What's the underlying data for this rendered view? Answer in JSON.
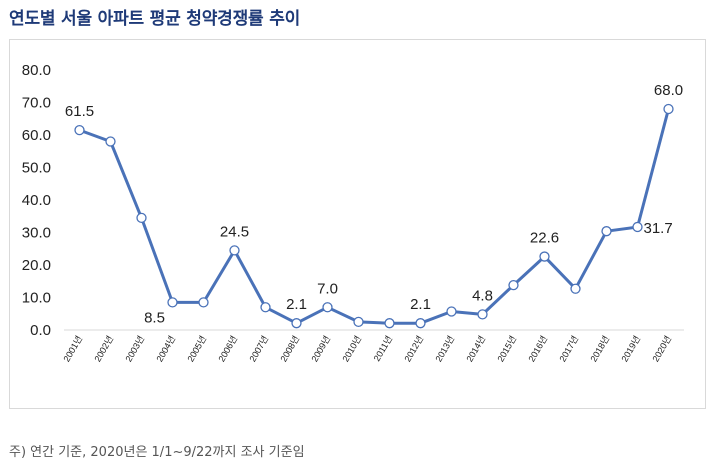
{
  "title": "연도별 서울 아파트 평균 청약경쟁률 추이",
  "note": "주) 연간 기준, 2020년은 1/1~9/22까지 조사 기준임",
  "colors": {
    "line": "#4a72b8",
    "title": "#1e3a78",
    "axis": "#d9d9d9"
  },
  "chart_data": {
    "type": "line",
    "title": "연도별 서울 아파트 평균 청약경쟁률 추이",
    "xlabel": "",
    "ylabel": "",
    "ylim": [
      0,
      80
    ],
    "yticks": [
      "0.0",
      "10.0",
      "20.0",
      "30.0",
      "40.0",
      "50.0",
      "60.0",
      "70.0",
      "80.0"
    ],
    "grid": false,
    "categories": [
      "2001년",
      "2002년",
      "2003년",
      "2004년",
      "2005년",
      "2006년",
      "2007년",
      "2008년",
      "2009년",
      "2010년",
      "2011년",
      "2012년",
      "2013년",
      "2014년",
      "2015년",
      "2016년",
      "2017년",
      "2018년",
      "2019년",
      "2020년"
    ],
    "series": [
      {
        "values": [
          61.5,
          58.0,
          34.5,
          8.5,
          8.5,
          24.5,
          7.0,
          2.1,
          7.0,
          2.5,
          2.1,
          2.1,
          5.7,
          4.8,
          13.8,
          22.6,
          12.7,
          30.4,
          31.7,
          68.0
        ]
      }
    ],
    "data_labels": [
      {
        "index": 0,
        "text": "61.5",
        "pos": "above"
      },
      {
        "index": 3,
        "text": "8.5",
        "pos": "below-left"
      },
      {
        "index": 5,
        "text": "24.5",
        "pos": "above"
      },
      {
        "index": 7,
        "text": "2.1",
        "pos": "above"
      },
      {
        "index": 8,
        "text": "7.0",
        "pos": "above"
      },
      {
        "index": 11,
        "text": "2.1",
        "pos": "above"
      },
      {
        "index": 13,
        "text": "4.8",
        "pos": "above"
      },
      {
        "index": 15,
        "text": "22.6",
        "pos": "above"
      },
      {
        "index": 18,
        "text": "31.7",
        "pos": "right"
      },
      {
        "index": 19,
        "text": "68.0",
        "pos": "above"
      }
    ]
  }
}
